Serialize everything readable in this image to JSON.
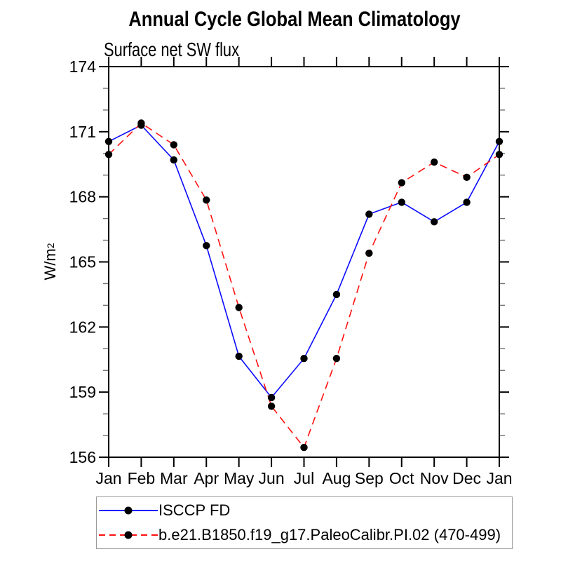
{
  "header": {
    "title": "Annual Cycle Global Mean Climatology",
    "subtitle": "Surface net SW flux"
  },
  "chart_data": {
    "type": "line",
    "title": "Annual Cycle Global Mean Climatology",
    "subtitle": "Surface net SW flux",
    "ylabel_base": "W/m",
    "ylabel_exponent": "2",
    "xlabel": "",
    "categories": [
      "Jan",
      "Feb",
      "Mar",
      "Apr",
      "May",
      "Jun",
      "Jul",
      "Aug",
      "Sep",
      "Oct",
      "Nov",
      "Dec",
      "Jan"
    ],
    "ylim": [
      156,
      174
    ],
    "y_major_ticks": [
      156,
      159,
      162,
      165,
      168,
      171,
      174
    ],
    "y_minor_step": 1,
    "grid": false,
    "legend_position": "bottom-left",
    "series": [
      {
        "name": "ISCCP FD",
        "color": "#0b0bff",
        "line_style": "solid",
        "marker": "black-dot",
        "values": [
          170.55,
          171.3,
          169.7,
          165.75,
          160.65,
          158.75,
          160.55,
          163.5,
          167.2,
          167.75,
          166.85,
          167.75,
          170.55
        ]
      },
      {
        "name": "b.e21.B1850.f19_g17.PaleoCalibr.PI.02 (470-499)",
        "color": "#ff1010",
        "line_style": "dashed",
        "marker": "black-dot",
        "values": [
          169.95,
          171.4,
          170.4,
          167.85,
          162.9,
          158.35,
          156.45,
          160.55,
          165.4,
          168.65,
          169.6,
          168.9,
          169.95
        ]
      }
    ],
    "style": {
      "axis_color": "#000000",
      "marker_color": "#000000",
      "minor_tick_color": "#6f6f6f",
      "legend_border_color": "#9a9a9a"
    }
  }
}
